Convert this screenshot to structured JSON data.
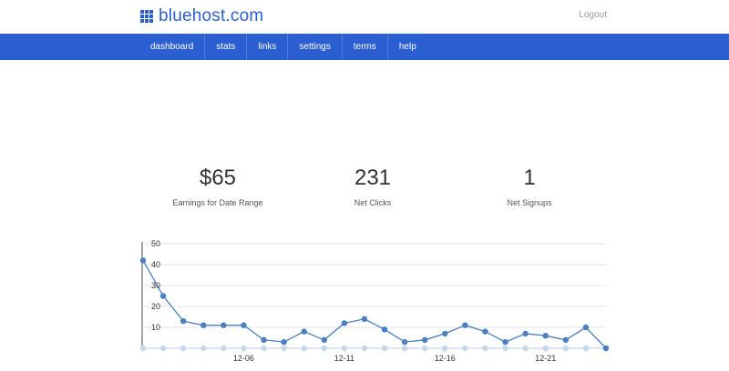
{
  "brand": {
    "name": "bluehost.com",
    "color": "#2d5fcc"
  },
  "header": {
    "logout_label": "Logout"
  },
  "nav": {
    "items": [
      {
        "label": "dashboard"
      },
      {
        "label": "stats"
      },
      {
        "label": "links"
      },
      {
        "label": "settings"
      },
      {
        "label": "terms"
      },
      {
        "label": "help"
      }
    ]
  },
  "stats": {
    "earnings": {
      "value": "$65",
      "label": "Earnings for Date Range"
    },
    "clicks": {
      "value": "231",
      "label": "Net Clicks"
    },
    "signups": {
      "value": "1",
      "label": "Net Signups"
    }
  },
  "chart_data": {
    "type": "line",
    "ylim": [
      0,
      50
    ],
    "yticks": [
      10,
      20,
      30,
      40,
      50
    ],
    "xtick_labels": [
      {
        "index": 5,
        "label": "12-06"
      },
      {
        "index": 10,
        "label": "12-11"
      },
      {
        "index": 15,
        "label": "12-16"
      },
      {
        "index": 20,
        "label": "12-21"
      }
    ],
    "series": [
      {
        "color": "#4a7fc0",
        "values": [
          42,
          25,
          13,
          11,
          11,
          11,
          4,
          3,
          8,
          4,
          12,
          14,
          9,
          3,
          4,
          7,
          11,
          8,
          3,
          7,
          6,
          4,
          10,
          0
        ]
      },
      {
        "color": "#c5d8ea",
        "values": [
          0,
          0,
          0,
          0,
          0,
          0,
          0,
          0,
          0,
          0,
          0,
          0,
          0,
          0,
          0,
          0,
          0,
          0,
          0,
          0,
          0,
          0,
          0,
          0
        ]
      }
    ]
  }
}
